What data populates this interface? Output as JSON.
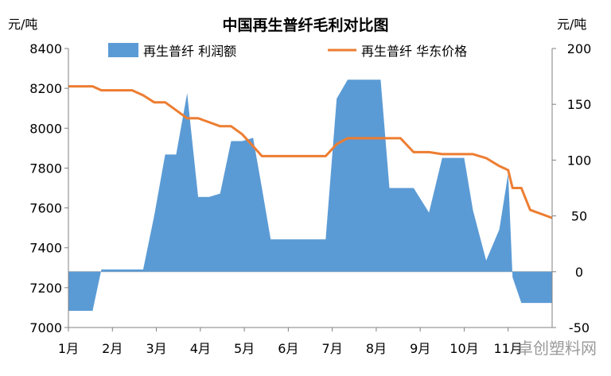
{
  "chart_data": {
    "type": "area",
    "title": "中国再生普纤毛利对比图",
    "left_unit": "元/吨",
    "right_unit": "元/吨",
    "categories": [
      "1月",
      "2月",
      "3月",
      "4月",
      "5月",
      "6月",
      "7月",
      "8月",
      "9月",
      "10月",
      "11月"
    ],
    "y_left": {
      "min": 7000,
      "max": 8400,
      "step": 200
    },
    "y_right": {
      "min": -50,
      "max": 200,
      "step": 50
    },
    "x_range": [
      1,
      12
    ],
    "series": [
      {
        "name": "再生普纤 利润额",
        "type": "area",
        "axis": "right",
        "color": "#5b9bd5",
        "x": [
          1.0,
          1.55,
          1.75,
          2.45,
          2.7,
          2.95,
          3.2,
          3.45,
          3.7,
          3.95,
          4.2,
          4.45,
          4.7,
          4.95,
          5.2,
          5.4,
          5.6,
          5.9,
          6.2,
          6.5,
          6.85,
          7.1,
          7.35,
          7.6,
          7.85,
          8.1,
          8.3,
          8.55,
          8.85,
          9.2,
          9.5,
          9.75,
          10.0,
          10.2,
          10.5,
          10.8,
          11.0,
          11.1,
          11.3,
          11.5,
          12.0
        ],
        "values": [
          -35,
          -35,
          2,
          2,
          2,
          50,
          105,
          105,
          160,
          67,
          67,
          70,
          117,
          117,
          120,
          75,
          29,
          29,
          29,
          29,
          29,
          155,
          172,
          172,
          172,
          172,
          75,
          75,
          75,
          53,
          102,
          102,
          102,
          55,
          10,
          38,
          88,
          -5,
          -28,
          -28,
          -28
        ]
      },
      {
        "name": "再生普纤 华东价格",
        "type": "line",
        "axis": "left",
        "color": "#ed7d31",
        "x": [
          1.0,
          1.55,
          1.75,
          2.45,
          2.7,
          2.95,
          3.2,
          3.45,
          3.7,
          3.95,
          4.2,
          4.45,
          4.7,
          4.95,
          5.2,
          5.4,
          5.6,
          5.9,
          6.2,
          6.5,
          6.85,
          7.1,
          7.35,
          7.6,
          7.85,
          8.1,
          8.3,
          8.55,
          8.85,
          9.2,
          9.5,
          9.75,
          10.0,
          10.2,
          10.5,
          10.8,
          11.0,
          11.1,
          11.3,
          11.5,
          12.0
        ],
        "values": [
          8210,
          8210,
          8190,
          8190,
          8165,
          8130,
          8130,
          8090,
          8050,
          8050,
          8030,
          8010,
          8010,
          7970,
          7910,
          7860,
          7860,
          7860,
          7860,
          7860,
          7860,
          7920,
          7950,
          7950,
          7950,
          7950,
          7950,
          7950,
          7880,
          7880,
          7870,
          7870,
          7870,
          7870,
          7850,
          7810,
          7790,
          7700,
          7700,
          7590,
          7550
        ]
      }
    ]
  },
  "watermark": "卓创塑料网"
}
